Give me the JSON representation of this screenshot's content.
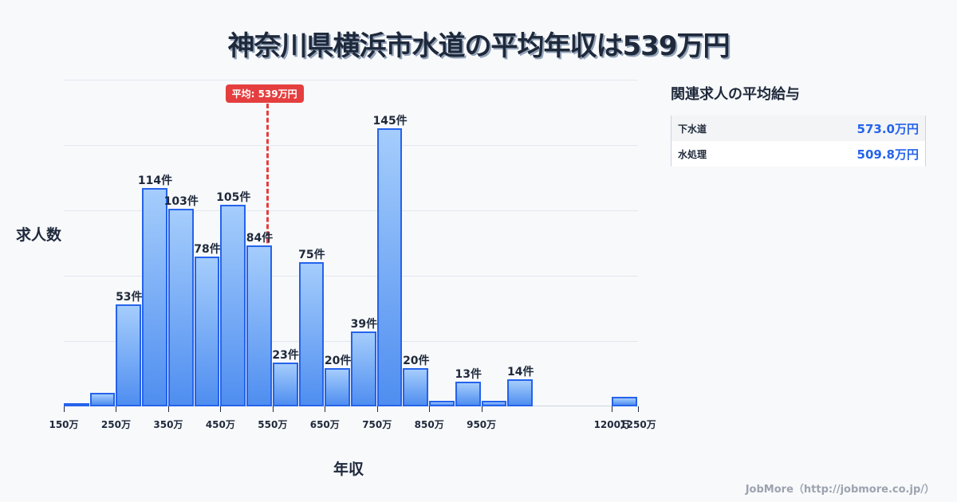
{
  "title": "神奈川県横浜市水道の平均年収は539万円",
  "chart_data": {
    "type": "bar",
    "title": "神奈川県横浜市水道の平均年収は539万円",
    "xlabel": "年収",
    "ylabel": "求人数",
    "bin_width_man_yen": 50,
    "bins": [
      {
        "from": 150,
        "to": 200,
        "value": 1,
        "label": ""
      },
      {
        "from": 200,
        "to": 250,
        "value": 7,
        "label": ""
      },
      {
        "from": 250,
        "to": 300,
        "value": 53,
        "label": "53件"
      },
      {
        "from": 300,
        "to": 350,
        "value": 114,
        "label": "114件"
      },
      {
        "from": 350,
        "to": 400,
        "value": 103,
        "label": "103件"
      },
      {
        "from": 400,
        "to": 450,
        "value": 78,
        "label": "78件"
      },
      {
        "from": 450,
        "to": 500,
        "value": 105,
        "label": "105件"
      },
      {
        "from": 500,
        "to": 550,
        "value": 84,
        "label": "84件"
      },
      {
        "from": 550,
        "to": 600,
        "value": 23,
        "label": "23件"
      },
      {
        "from": 600,
        "to": 650,
        "value": 75,
        "label": "75件"
      },
      {
        "from": 650,
        "to": 700,
        "value": 20,
        "label": "20件"
      },
      {
        "from": 700,
        "to": 750,
        "value": 39,
        "label": "39件"
      },
      {
        "from": 750,
        "to": 800,
        "value": 145,
        "label": "145件"
      },
      {
        "from": 800,
        "to": 850,
        "value": 20,
        "label": "20件"
      },
      {
        "from": 850,
        "to": 900,
        "value": 3,
        "label": ""
      },
      {
        "from": 900,
        "to": 950,
        "value": 13,
        "label": "13件"
      },
      {
        "from": 950,
        "to": 1000,
        "value": 3,
        "label": ""
      },
      {
        "from": 1000,
        "to": 1050,
        "value": 14,
        "label": "14件"
      },
      {
        "from": 1200,
        "to": 1250,
        "value": 5,
        "label": ""
      }
    ],
    "x_ticks": [
      "150万",
      "250万",
      "350万",
      "450万",
      "550万",
      "650万",
      "750万",
      "850万",
      "950万",
      "1200万",
      "1250万"
    ],
    "xlim": [
      150,
      1250
    ],
    "ylim": [
      0,
      170
    ],
    "grid": true,
    "average": {
      "value": 539,
      "label": "平均: 539万円",
      "color": "#e53e3e"
    },
    "bar_color": "#4f8ef0",
    "bar_border_color": "#2563eb"
  },
  "related": {
    "title": "関連求人の平均給与",
    "items": [
      {
        "name": "下水道",
        "value": "573.0万円"
      },
      {
        "name": "水処理",
        "value": "509.8万円"
      }
    ]
  },
  "footer": "JobMore（http://jobmore.co.jp/）"
}
